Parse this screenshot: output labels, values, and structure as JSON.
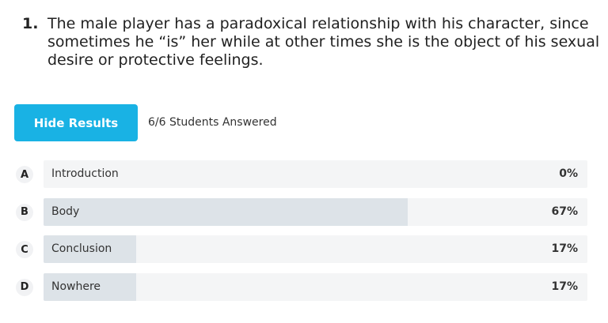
{
  "question": {
    "number": "1.",
    "text": "The male player has a paradoxical relationship with his character, since sometimes he “is” her while at other times she is the object of his sexual desire or protective feelings."
  },
  "button": "Hide Results",
  "answered": "6/6 Students Answered",
  "options": [
    {
      "letter": "A",
      "text": "Introduction",
      "value": 0,
      "label": "0%"
    },
    {
      "letter": "B",
      "text": "Body",
      "value": 67,
      "label": "67%"
    },
    {
      "letter": "C",
      "text": "Conclusion",
      "value": 17,
      "label": "17%"
    },
    {
      "letter": "D",
      "text": "Nowhere",
      "value": 17,
      "label": "17%"
    }
  ]
}
